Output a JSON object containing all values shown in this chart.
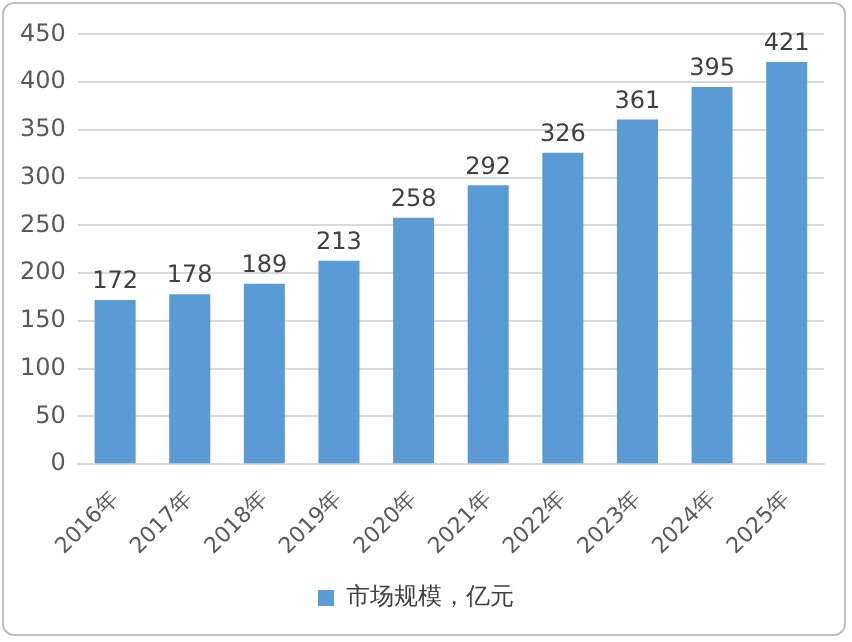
{
  "chart_data": {
    "type": "bar",
    "categories": [
      "2016年",
      "2017年",
      "2018年",
      "2019年",
      "2020年",
      "2021年",
      "2022年",
      "2023年",
      "2024年",
      "2025年"
    ],
    "series": [
      {
        "name": "市场规模，亿元",
        "color": "#5b9bd5",
        "values": [
          172,
          178,
          189,
          213,
          258,
          292,
          326,
          361,
          395,
          421
        ]
      }
    ],
    "ylim": [
      0,
      450
    ],
    "yticks": [
      0,
      50,
      100,
      150,
      200,
      250,
      300,
      350,
      400,
      450
    ],
    "grid": "y",
    "legend": "bottom",
    "data_labels": true
  }
}
